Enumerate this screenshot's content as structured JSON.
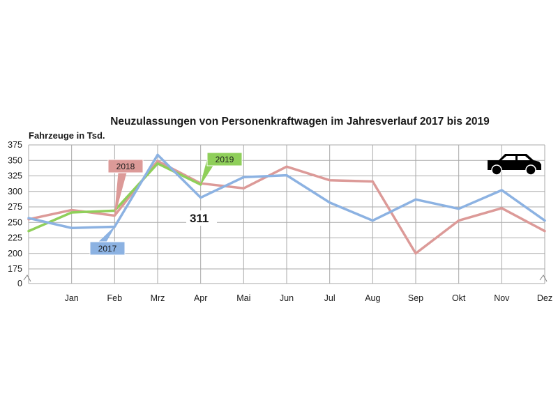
{
  "chart_data": {
    "type": "line",
    "title": "Neuzulassungen von Personenkraftwagen im Jahresverlauf 2017 bis 2019",
    "ylabel": "Fahrzeuge in Tsd.",
    "categories": [
      "",
      "Jan",
      "Feb",
      "Mrz",
      "Apr",
      "Mai",
      "Jun",
      "Jul",
      "Aug",
      "Sep",
      "Okt",
      "Nov",
      "Dez"
    ],
    "y_ticks": [
      "0",
      "175",
      "200",
      "225",
      "250",
      "275",
      "300",
      "325",
      "350",
      "375"
    ],
    "ylim": [
      175,
      375
    ],
    "axis_break": true,
    "grid": true,
    "series": [
      {
        "name": "2017",
        "color": "#8cb2e2",
        "values": [
          257,
          241,
          243,
          359,
          290,
          323,
          326,
          282,
          253,
          287,
          272,
          302,
          253
        ]
      },
      {
        "name": "2018",
        "color": "#dc9a98",
        "values": [
          255,
          270,
          261,
          349,
          313,
          305,
          340,
          318,
          316,
          200,
          253,
          273,
          236
        ]
      },
      {
        "name": "2019",
        "color": "#8fcf5a",
        "values": [
          236,
          266,
          269,
          345,
          311,
          null,
          null,
          null,
          null,
          null,
          null,
          null,
          null
        ]
      }
    ],
    "annotations": [
      {
        "text": "311",
        "series": "2019",
        "category": "Apr"
      }
    ]
  },
  "icon": {
    "name": "car-icon"
  }
}
